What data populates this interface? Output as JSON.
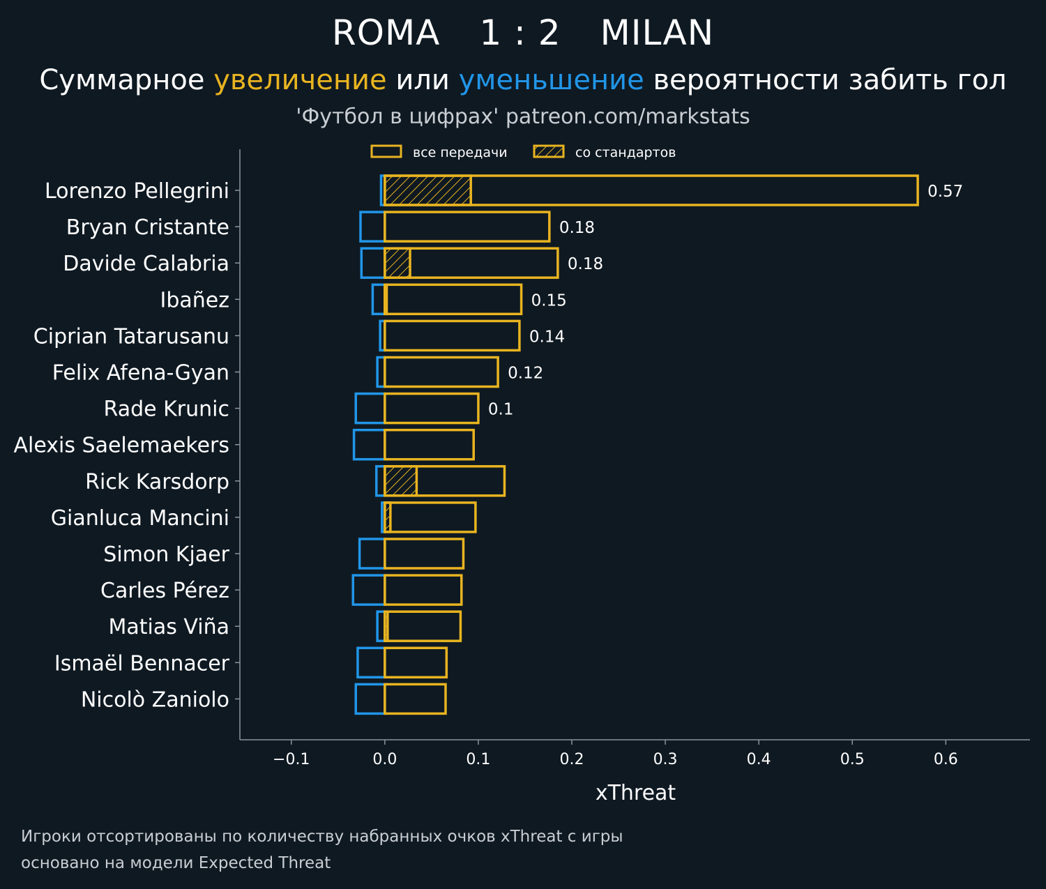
{
  "header": {
    "home": "ROMA",
    "score": "1 : 2",
    "away": "MILAN"
  },
  "subtitle": {
    "part1": "Суммарное ",
    "up": "увеличение",
    "part2": " или ",
    "down": "уменьшение",
    "part3": " вероятности забить гол"
  },
  "credit": "'Футбол в цифрах' patreon.com/markstats",
  "footnotes": {
    "line1": "Игроки отсортированы по количеству набранных очков xThreat с игры",
    "line2": "основано на модели Expected Threat"
  },
  "colors": {
    "background": "#0f1922",
    "positive": "#e8b420",
    "negative": "#2196e8",
    "axis": "#8a949c",
    "text": "#ffffff"
  },
  "chart_data": {
    "type": "bar",
    "orientation": "horizontal",
    "xlabel": "xThreat",
    "xlim": [
      -0.155,
      0.69
    ],
    "xticks": [
      -0.1,
      0.0,
      0.1,
      0.2,
      0.3,
      0.4,
      0.5,
      0.6
    ],
    "xtick_labels": [
      "−0.1",
      "0.0",
      "0.1",
      "0.2",
      "0.3",
      "0.4",
      "0.5",
      "0.6"
    ],
    "legend": {
      "position": "top-center",
      "entries": [
        "все передачи",
        "со стандартов"
      ]
    },
    "categories": [
      "Lorenzo Pellegrini",
      "Bryan Cristante",
      "Davide Calabria",
      "Ibañez",
      "Ciprian Tatarusanu",
      "Felix Afena-Gyan",
      "Rade Krunic",
      "Alexis Saelemaekers",
      "Rick Karsdorp",
      "Gianluca Mancini",
      "Simon Kjaer",
      "Carles Pérez",
      "Matias Viña",
      "Ismaël Bennacer",
      "Nicolò Zaniolo"
    ],
    "series": [
      {
        "name": "все передачи (увеличение)",
        "values": [
          0.57,
          0.176,
          0.185,
          0.146,
          0.144,
          0.121,
          0.1,
          0.095,
          0.128,
          0.097,
          0.084,
          0.082,
          0.081,
          0.066,
          0.065
        ]
      },
      {
        "name": "со стандартов",
        "values": [
          0.092,
          0,
          0.027,
          0.002,
          0,
          0,
          0,
          0,
          0.034,
          0.006,
          0,
          0,
          0.003,
          0,
          0
        ]
      },
      {
        "name": "уменьшение",
        "values": [
          -0.004,
          -0.026,
          -0.025,
          -0.013,
          -0.005,
          -0.008,
          -0.031,
          -0.033,
          -0.009,
          -0.003,
          -0.027,
          -0.034,
          -0.008,
          -0.029,
          -0.031
        ]
      }
    ],
    "value_labels": [
      "0.57",
      "0.18",
      "0.18",
      "0.15",
      "0.14",
      "0.12",
      "0.1",
      "",
      "",
      "",
      "",
      "",
      "",
      "",
      ""
    ]
  }
}
